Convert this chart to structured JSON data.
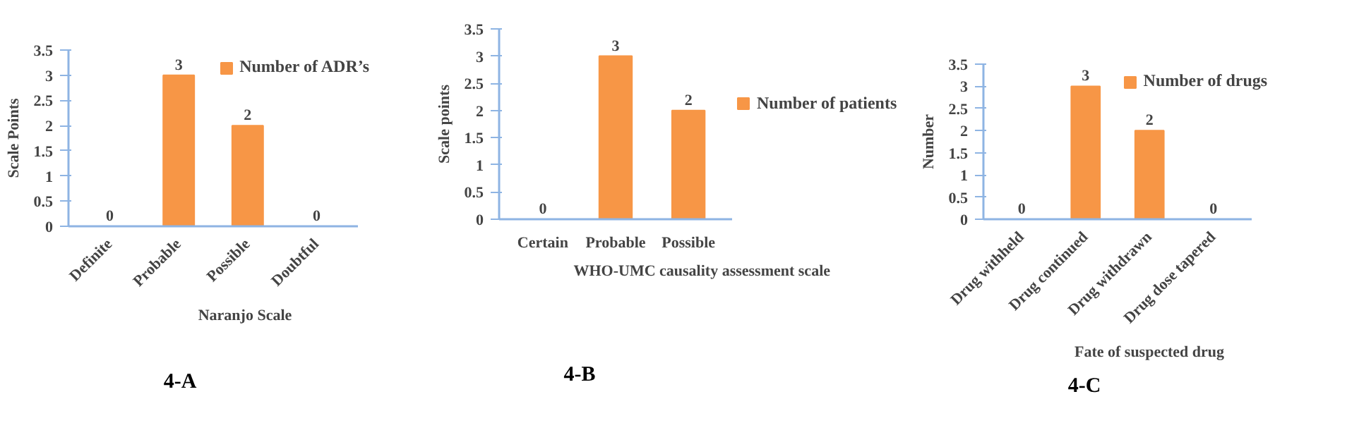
{
  "chart_data": [
    {
      "type": "bar",
      "title": "4-A",
      "xlabel": "Naranjo Scale",
      "ylabel": "Scale Points",
      "categories": [
        "Definite",
        "Probable",
        "Possible",
        "Doubtful"
      ],
      "series": [
        {
          "name": "Number of ADR’s",
          "color": "#f79646",
          "values": [
            0,
            3,
            2,
            0
          ]
        }
      ],
      "ylim": [
        0,
        3.5
      ],
      "yticks": [
        0,
        0.5,
        1,
        1.5,
        2,
        2.5,
        3,
        3.5
      ],
      "data_labels": true,
      "grid": false,
      "legend": "top right"
    },
    {
      "type": "bar",
      "title": "4-B",
      "xlabel": "WHO-UMC  causality assessment scale",
      "ylabel": "Scale points",
      "categories": [
        "Certain",
        "Probable",
        "Possible"
      ],
      "series": [
        {
          "name": "Number of patients",
          "color": "#f79646",
          "values": [
            0,
            3,
            2
          ]
        }
      ],
      "ylim": [
        0,
        3.5
      ],
      "yticks": [
        0,
        0.5,
        1,
        1.5,
        2,
        2.5,
        3,
        3.5
      ],
      "data_labels": true,
      "grid": false,
      "legend": "right"
    },
    {
      "type": "bar",
      "title": "4-C",
      "xlabel": "Fate of suspected drug",
      "ylabel": "Number",
      "categories": [
        "Drug withheld",
        "Drug continued",
        "Drug withdrawn",
        "Drug dose tapered"
      ],
      "series": [
        {
          "name": "Number of drugs",
          "color": "#f79646",
          "values": [
            0,
            3,
            2,
            0
          ]
        }
      ],
      "ylim": [
        0,
        3.5
      ],
      "yticks": [
        0,
        0.5,
        1,
        1.5,
        2,
        2.5,
        3,
        3.5
      ],
      "data_labels": true,
      "grid": false,
      "legend": "top right"
    }
  ]
}
